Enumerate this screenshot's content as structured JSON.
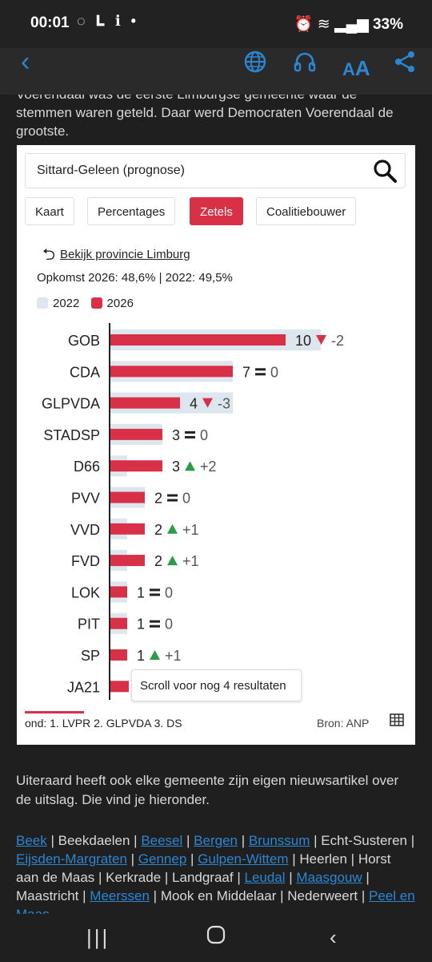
{
  "status": {
    "time": "00:01",
    "battery": "33%"
  },
  "article": {
    "ghost_text": "Voerendaal was de eerste Limburgse gemeente waar de stemmen waren geteld. Daar werd Democraten Voerendaal de grootste.",
    "intro": "Voerendaal was de eerste Limburgse gemeente waar de stemmen waren geteld. Daar werd Democraten Voerendaal de grootste.",
    "para2": "Uiteraard heeft ook elke gemeente zijn eigen nieuwsartikel over de uitslag. Die vind je hieronder.",
    "links": [
      {
        "text": "Beek",
        "link": true
      },
      {
        "text": "Beekdaelen",
        "link": false
      },
      {
        "text": "Beesel",
        "link": true
      },
      {
        "text": "Bergen",
        "link": true
      },
      {
        "text": "Brunssum",
        "link": true
      },
      {
        "text": "Echt-Susteren",
        "link": false
      },
      {
        "text": "Eijsden-Margraten",
        "link": true
      },
      {
        "text": "Gennep",
        "link": true
      },
      {
        "text": "Gulpen-Wittem",
        "link": true
      },
      {
        "text": "Heerlen",
        "link": false
      },
      {
        "text": "Horst aan de Maas",
        "link": false
      },
      {
        "text": "Kerkrade",
        "link": false
      },
      {
        "text": "Landgraaf",
        "link": false
      },
      {
        "text": "Leudal",
        "link": true
      },
      {
        "text": "Maasgouw",
        "link": true
      },
      {
        "text": "Maastricht",
        "link": false
      },
      {
        "text": "Meerssen",
        "link": true
      },
      {
        "text": "Mook en Middelaar",
        "link": false
      },
      {
        "text": "Nederweert",
        "link": false
      },
      {
        "text": "Peel en Maas",
        "link": true
      }
    ]
  },
  "widget": {
    "search_value": "Sittard-Geleen (prognose)",
    "tabs": [
      {
        "label": "Kaart",
        "active": false
      },
      {
        "label": "Percentages",
        "active": false
      },
      {
        "label": "Zetels",
        "active": true
      },
      {
        "label": "Coalitiebouwer",
        "active": false
      }
    ],
    "province_link": "Bekijk provincie Limburg",
    "turnout": "Opkomst 2026: 48,6% | 2022: 49,5%",
    "legend": [
      {
        "label": "2022",
        "color": "#dde6ee"
      },
      {
        "label": "2026",
        "color": "#d83047"
      }
    ],
    "scroll_hint": "Scroll voor nog 4 resultaten",
    "footer_note": "ond:  1. LVPR   2. GLPVDA   3. DS",
    "source": "Bron: ANP"
  },
  "chart_data": {
    "type": "bar",
    "orientation": "horizontal",
    "categories": [
      "GOB",
      "CDA",
      "GLPVDA",
      "STADSP",
      "D66",
      "PVV",
      "VVD",
      "FVD",
      "LOK",
      "PIT",
      "SP",
      "JA21"
    ],
    "series": [
      {
        "name": "2022",
        "values": [
          12,
          7,
          7,
          3,
          1,
          2,
          1,
          1,
          1,
          1,
          0,
          null
        ],
        "color": "#dde6ee"
      },
      {
        "name": "2026",
        "values": [
          10,
          7,
          4,
          3,
          3,
          2,
          2,
          2,
          1,
          1,
          1,
          null
        ],
        "color": "#d83047"
      }
    ],
    "value_labels": [
      "10",
      "7",
      "4",
      "3",
      "3",
      "2",
      "2",
      "2",
      "1",
      "1",
      "1",
      ""
    ],
    "change_labels": [
      "-2",
      "0",
      "-3",
      "0",
      "+2",
      "0",
      "+1",
      "+1",
      "0",
      "0",
      "+1",
      ""
    ],
    "change_dir": [
      "down",
      "same",
      "down",
      "same",
      "up",
      "same",
      "up",
      "up",
      "same",
      "same",
      "up",
      ""
    ],
    "colors": {
      "up": "#2a9d48",
      "down": "#d83047",
      "same": "#222222"
    },
    "xlim": [
      0,
      12
    ],
    "grid": false,
    "legend_position": "top-left"
  }
}
